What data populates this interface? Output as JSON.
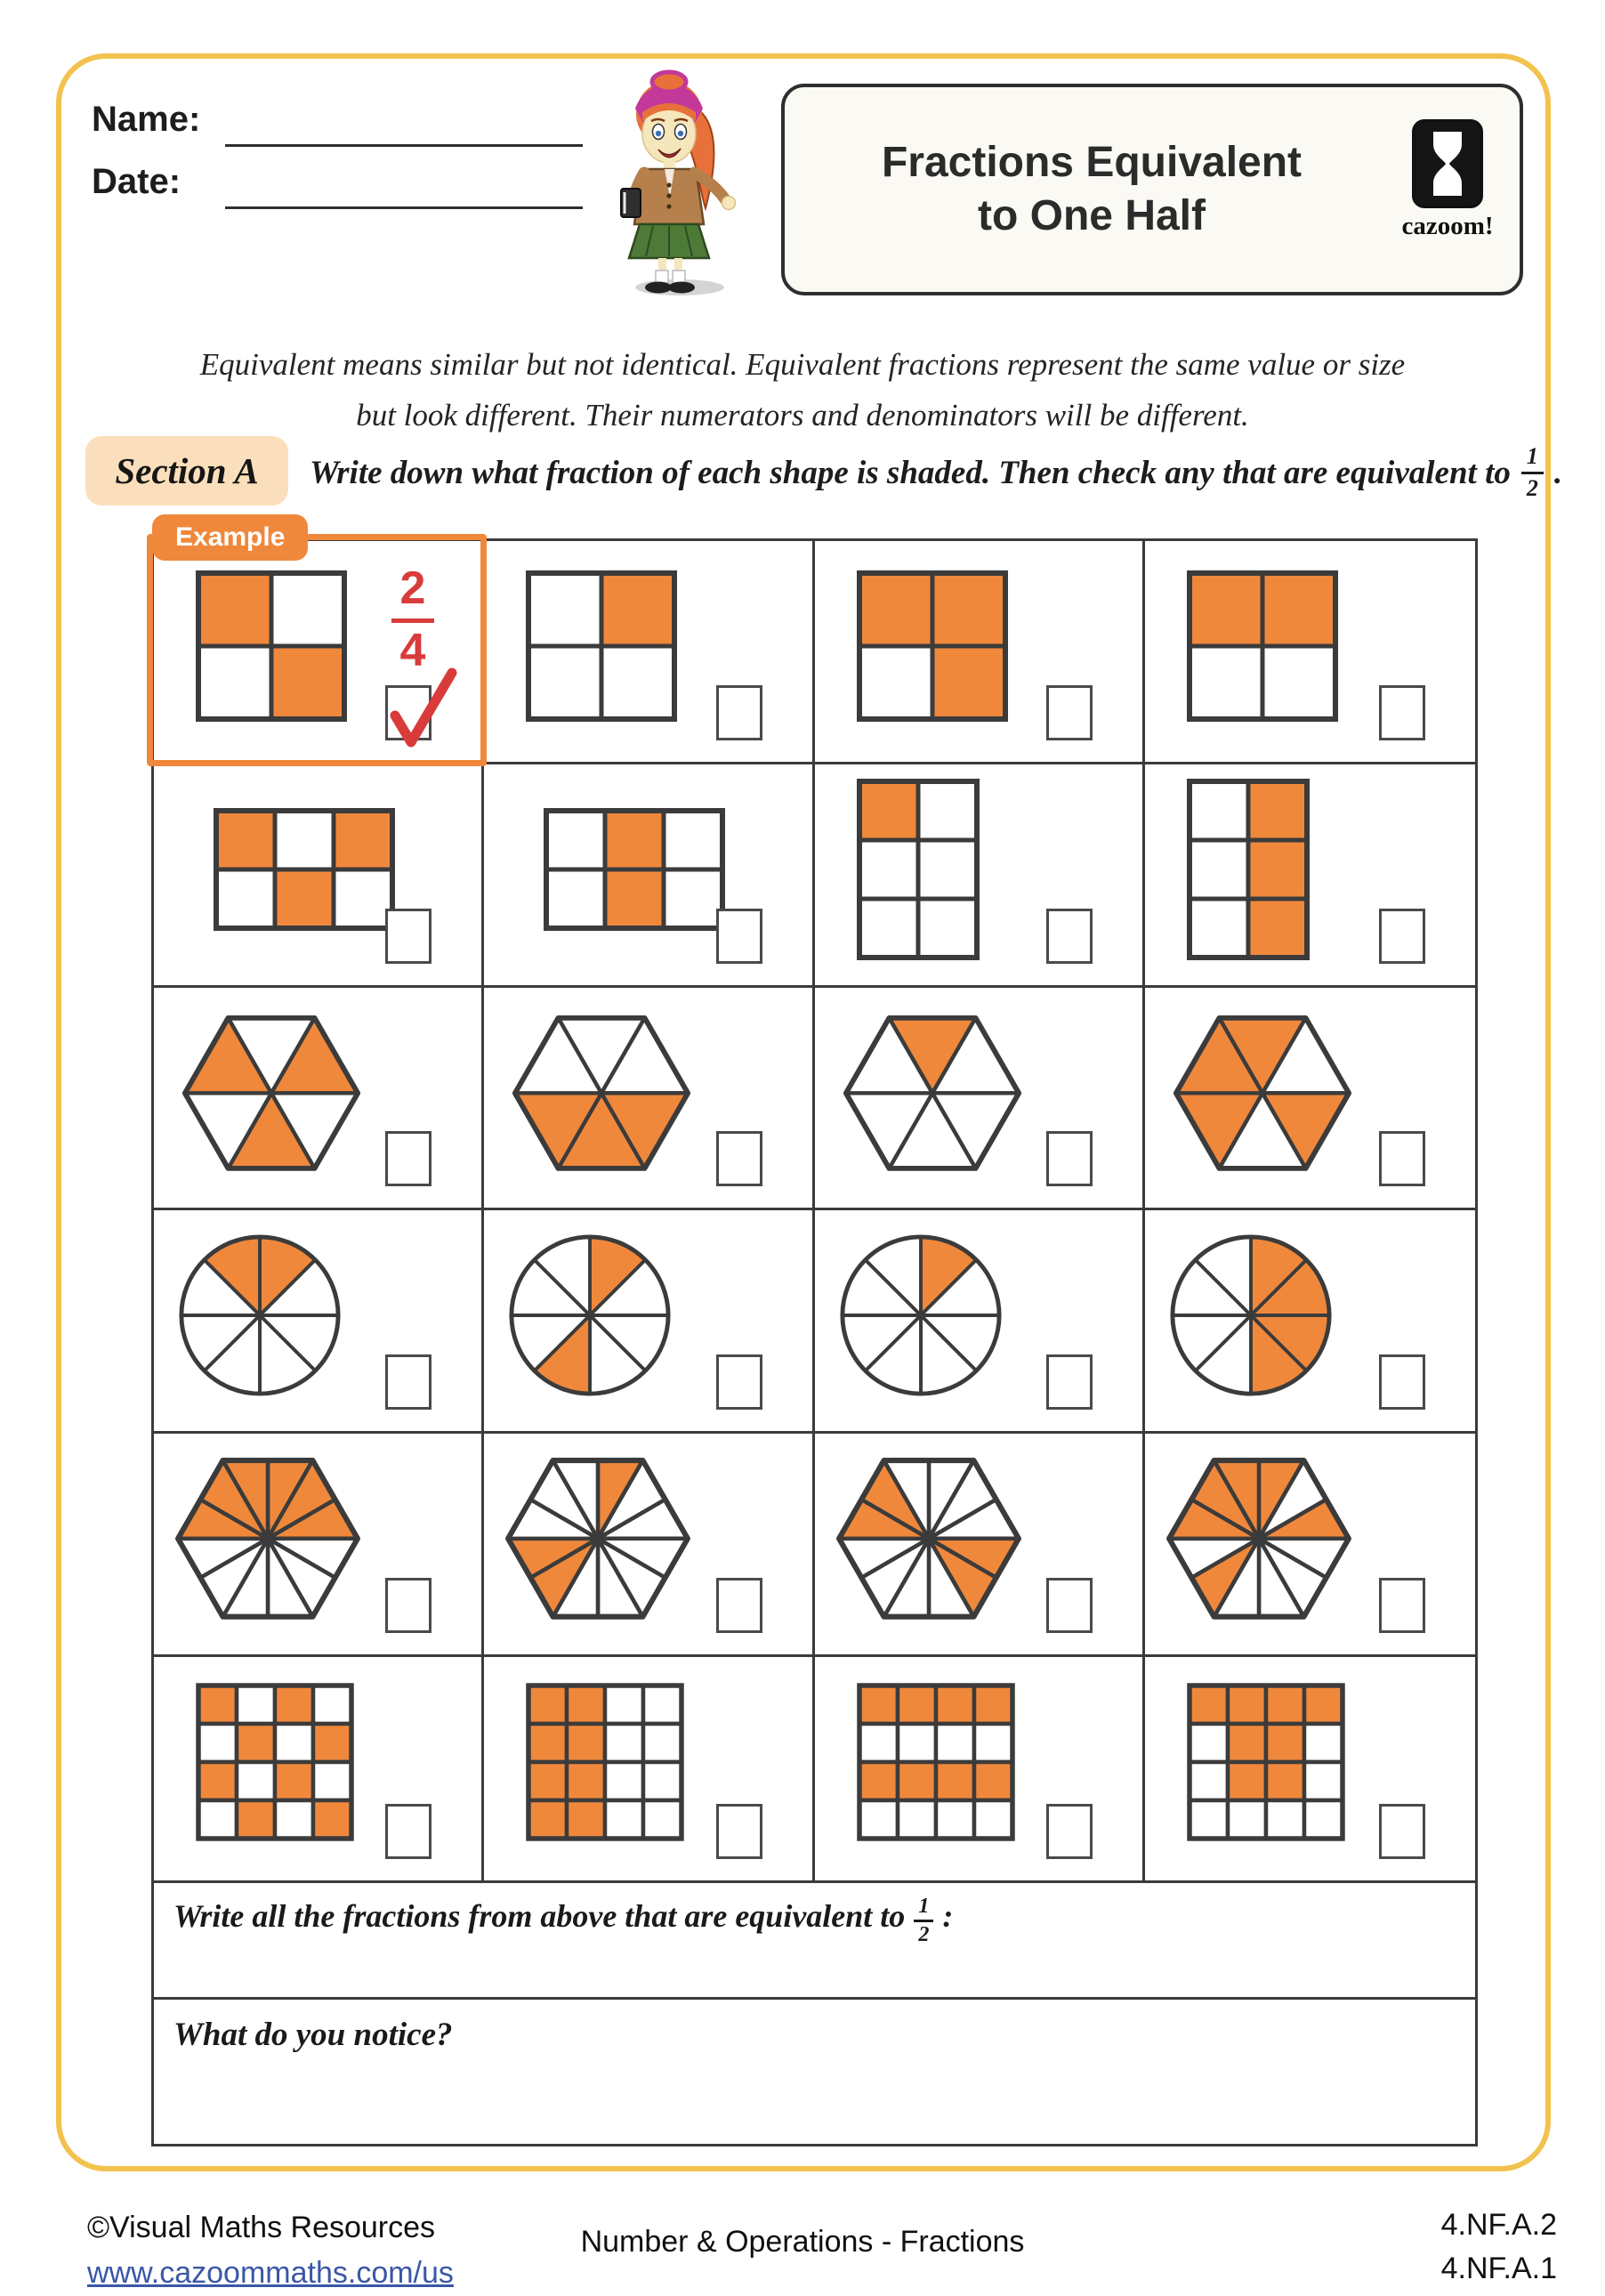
{
  "page": {
    "name_label": "Name:",
    "date_label": "Date:",
    "title_line1": "Fractions Equivalent",
    "title_line2": "to One Half",
    "logo_text": "cazoom!"
  },
  "intro": {
    "line1": "Equivalent means similar but not identical. Equivalent fractions represent the same value or size",
    "line2": "but look different. Their numerators and denominators will be different."
  },
  "section_a": {
    "label": "Section A",
    "instruction_before": "Write down what fraction of each shape is shaded. Then check any that are equivalent to",
    "fraction": {
      "numerator": "1",
      "denominator": "2"
    },
    "instruction_after": "."
  },
  "grid": {
    "example": {
      "label": "Example",
      "answer_numerator": "2",
      "answer_denominator": "4"
    },
    "cells": [
      {
        "shape": "square-grid",
        "cols": 2,
        "rows": 2,
        "total": 4,
        "shaded": [
          0,
          3
        ],
        "example": true,
        "checked": true
      },
      {
        "shape": "square-grid",
        "cols": 2,
        "rows": 2,
        "total": 4,
        "shaded": [
          1
        ],
        "checked": false
      },
      {
        "shape": "square-grid",
        "cols": 2,
        "rows": 2,
        "total": 4,
        "shaded": [
          0,
          1,
          3
        ],
        "checked": false
      },
      {
        "shape": "square-grid",
        "cols": 2,
        "rows": 2,
        "total": 4,
        "shaded": [
          0,
          1
        ],
        "checked": false
      },
      {
        "shape": "square-grid",
        "cols": 3,
        "rows": 2,
        "total": 6,
        "shaded": [
          0,
          2,
          4
        ],
        "checked": false
      },
      {
        "shape": "square-grid",
        "cols": 3,
        "rows": 2,
        "total": 6,
        "shaded": [
          1,
          4
        ],
        "checked": false
      },
      {
        "shape": "square-grid",
        "cols": 2,
        "rows": 3,
        "total": 6,
        "shaded": [
          0
        ],
        "checked": false
      },
      {
        "shape": "square-grid",
        "cols": 2,
        "rows": 3,
        "total": 6,
        "shaded": [
          1,
          3,
          5
        ],
        "checked": false
      },
      {
        "shape": "hexagon-6",
        "total": 6,
        "shaded": [
          1,
          3,
          5
        ],
        "checked": false
      },
      {
        "shape": "hexagon-6",
        "total": 6,
        "shaded": [
          2,
          3,
          4
        ],
        "checked": false
      },
      {
        "shape": "hexagon-6",
        "total": 6,
        "shaded": [
          0
        ],
        "checked": false
      },
      {
        "shape": "hexagon-6",
        "total": 6,
        "shaded": [
          0,
          2,
          4,
          5
        ],
        "checked": false
      },
      {
        "shape": "circle-8",
        "total": 8,
        "shaded": [
          0,
          7
        ],
        "checked": false
      },
      {
        "shape": "circle-8",
        "total": 8,
        "shaded": [
          0,
          4
        ],
        "checked": false
      },
      {
        "shape": "circle-8",
        "total": 8,
        "shaded": [
          0
        ],
        "checked": false
      },
      {
        "shape": "circle-8",
        "total": 8,
        "shaded": [
          0,
          1,
          2,
          3
        ],
        "checked": false
      },
      {
        "shape": "hexagon-12",
        "total": 12,
        "shaded": [
          0,
          1,
          2,
          9,
          10,
          11
        ],
        "checked": false
      },
      {
        "shape": "hexagon-12",
        "total": 12,
        "shaded": [
          0,
          7,
          8
        ],
        "checked": false
      },
      {
        "shape": "hexagon-12",
        "total": 12,
        "shaded": [
          3,
          4,
          9,
          10
        ],
        "checked": false
      },
      {
        "shape": "hexagon-12",
        "total": 12,
        "shaded": [
          0,
          2,
          7,
          9,
          10,
          11
        ],
        "checked": false
      },
      {
        "shape": "square-grid",
        "cols": 4,
        "rows": 4,
        "total": 16,
        "shaded": [
          0,
          2,
          5,
          7,
          8,
          10,
          13,
          15
        ],
        "checked": false
      },
      {
        "shape": "square-grid",
        "cols": 4,
        "rows": 4,
        "total": 16,
        "shaded": [
          0,
          1,
          4,
          5,
          8,
          9,
          12,
          13
        ],
        "checked": false
      },
      {
        "shape": "square-grid",
        "cols": 4,
        "rows": 4,
        "total": 16,
        "shaded": [
          0,
          1,
          2,
          3,
          8,
          9,
          10,
          11
        ],
        "checked": false
      },
      {
        "shape": "square-grid",
        "cols": 4,
        "rows": 4,
        "total": 16,
        "shaded": [
          0,
          1,
          2,
          3,
          5,
          6,
          9,
          10
        ],
        "checked": false
      }
    ]
  },
  "answers": {
    "write_fractions_before": "Write all the fractions from above that are equivalent to",
    "write_fractions_fraction": {
      "numerator": "1",
      "denominator": "2"
    },
    "write_fractions_after": ":",
    "notice_label": "What do you notice?"
  },
  "footer": {
    "copyright": "©Visual Maths Resources",
    "link": "www.cazoommaths.com/us",
    "center": "Number & Operations - Fractions",
    "standard1": "4.NF.A.2",
    "standard2": "4.NF.A.1"
  },
  "colors": {
    "shade": "#F0883C",
    "outline": "#3B3B3B",
    "page_border": "#F2C24E",
    "answer_red": "#D93B3B",
    "section_bg": "#FBDFBC",
    "link_blue": "#3A57A7"
  }
}
